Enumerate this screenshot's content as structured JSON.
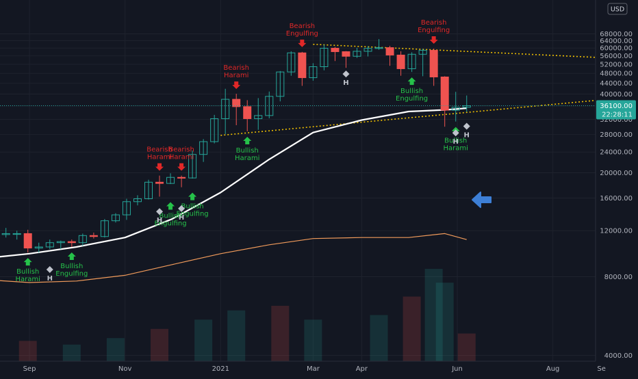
{
  "chart_data": {
    "type": "candlestick",
    "currency": "USD",
    "y_axis": {
      "scale": "log",
      "ticks": [
        "68000.00",
        "64000.00",
        "60000.00",
        "56000.00",
        "52000.00",
        "48000.00",
        "44000.00",
        "40000.00",
        "36000.00",
        "32000.00",
        "28000.00",
        "24000.00",
        "20000.00",
        "16000.00",
        "12000.00",
        "8000.00",
        "4000.00"
      ],
      "tick_values": [
        68000,
        64000,
        60000,
        56000,
        52000,
        48000,
        44000,
        40000,
        36000,
        32000,
        28000,
        24000,
        20000,
        16000,
        12000,
        8000,
        4000
      ]
    },
    "x_axis": {
      "ticks": [
        "Sep",
        "Nov",
        "2021",
        "Mar",
        "Apr",
        "Jun",
        "Aug",
        "Se"
      ],
      "tick_dates": [
        "2020-09-01",
        "2020-11-01",
        "2021-01-01",
        "2021-03-01",
        "2021-04-01",
        "2021-06-01",
        "2021-08-01",
        "2021-09-01"
      ]
    },
    "current_price": {
      "label": "36100.00",
      "value": 36100,
      "countdown": "22:28:11"
    },
    "candles": [
      {
        "date": "2020-08-03",
        "o": 11100,
        "h": 12100,
        "l": 10600,
        "c": 11800
      },
      {
        "date": "2020-08-10",
        "o": 11800,
        "h": 12400,
        "l": 11200,
        "c": 11600
      },
      {
        "date": "2020-08-17",
        "o": 11600,
        "h": 12300,
        "l": 11300,
        "c": 11700
      },
      {
        "date": "2020-08-24",
        "o": 11700,
        "h": 12000,
        "l": 11100,
        "c": 11700
      },
      {
        "date": "2020-08-31",
        "o": 11700,
        "h": 12100,
        "l": 9900,
        "c": 10300
      },
      {
        "date": "2020-09-07",
        "o": 10300,
        "h": 10800,
        "l": 9900,
        "c": 10400
      },
      {
        "date": "2020-09-14",
        "o": 10400,
        "h": 11100,
        "l": 10200,
        "c": 10800
      },
      {
        "date": "2020-09-21",
        "o": 10800,
        "h": 11000,
        "l": 10200,
        "c": 10900
      },
      {
        "date": "2020-09-28",
        "o": 10900,
        "h": 11100,
        "l": 10400,
        "c": 10800
      },
      {
        "date": "2020-10-05",
        "o": 10800,
        "h": 11700,
        "l": 10500,
        "c": 11500
      },
      {
        "date": "2020-10-12",
        "o": 11500,
        "h": 11800,
        "l": 11200,
        "c": 11400
      },
      {
        "date": "2020-10-19",
        "o": 11400,
        "h": 13300,
        "l": 11300,
        "c": 13100
      },
      {
        "date": "2020-10-26",
        "o": 13100,
        "h": 14000,
        "l": 12900,
        "c": 13800
      },
      {
        "date": "2020-11-02",
        "o": 13800,
        "h": 15900,
        "l": 13200,
        "c": 15500
      },
      {
        "date": "2020-11-09",
        "o": 15500,
        "h": 16400,
        "l": 15000,
        "c": 15900
      },
      {
        "date": "2020-11-16",
        "o": 15900,
        "h": 18800,
        "l": 15800,
        "c": 18400
      },
      {
        "date": "2020-11-23",
        "o": 18400,
        "h": 19500,
        "l": 16200,
        "c": 18200
      },
      {
        "date": "2020-11-30",
        "o": 18200,
        "h": 19900,
        "l": 18100,
        "c": 19200
      },
      {
        "date": "2020-12-07",
        "o": 19200,
        "h": 19500,
        "l": 17600,
        "c": 19100
      },
      {
        "date": "2020-12-14",
        "o": 19100,
        "h": 24300,
        "l": 19000,
        "c": 23500
      },
      {
        "date": "2020-12-21",
        "o": 23500,
        "h": 26900,
        "l": 22000,
        "c": 26300
      },
      {
        "date": "2020-12-28",
        "o": 26300,
        "h": 33300,
        "l": 25900,
        "c": 32200
      },
      {
        "date": "2021-01-04",
        "o": 32200,
        "h": 41900,
        "l": 28100,
        "c": 38200
      },
      {
        "date": "2021-01-11",
        "o": 38200,
        "h": 40100,
        "l": 30400,
        "c": 35800
      },
      {
        "date": "2021-01-18",
        "o": 35800,
        "h": 37900,
        "l": 28800,
        "c": 32200
      },
      {
        "date": "2021-01-25",
        "o": 32200,
        "h": 38600,
        "l": 29200,
        "c": 33100
      },
      {
        "date": "2021-02-01",
        "o": 33100,
        "h": 40900,
        "l": 32300,
        "c": 39200
      },
      {
        "date": "2021-02-08",
        "o": 39200,
        "h": 49000,
        "l": 37500,
        "c": 48600
      },
      {
        "date": "2021-02-15",
        "o": 48600,
        "h": 58300,
        "l": 47000,
        "c": 57500
      },
      {
        "date": "2021-02-22",
        "o": 57500,
        "h": 58000,
        "l": 43000,
        "c": 46200
      },
      {
        "date": "2021-03-01",
        "o": 46200,
        "h": 52500,
        "l": 45000,
        "c": 50900
      },
      {
        "date": "2021-03-08",
        "o": 50900,
        "h": 61800,
        "l": 49300,
        "c": 59900
      },
      {
        "date": "2021-03-15",
        "o": 59900,
        "h": 60600,
        "l": 53500,
        "c": 58100
      },
      {
        "date": "2021-03-22",
        "o": 58100,
        "h": 58400,
        "l": 50400,
        "c": 55800
      },
      {
        "date": "2021-03-29",
        "o": 55800,
        "h": 60100,
        "l": 55000,
        "c": 58300
      },
      {
        "date": "2021-04-05",
        "o": 58300,
        "h": 61000,
        "l": 55700,
        "c": 59800
      },
      {
        "date": "2021-04-12",
        "o": 59800,
        "h": 64900,
        "l": 59100,
        "c": 60200
      },
      {
        "date": "2021-04-19",
        "o": 60200,
        "h": 61200,
        "l": 51300,
        "c": 56400
      },
      {
        "date": "2021-04-26",
        "o": 56400,
        "h": 58300,
        "l": 47000,
        "c": 50000
      },
      {
        "date": "2021-05-03",
        "o": 50000,
        "h": 57800,
        "l": 48600,
        "c": 56800
      },
      {
        "date": "2021-05-10",
        "o": 56800,
        "h": 59600,
        "l": 46800,
        "c": 58800
      },
      {
        "date": "2021-05-17",
        "o": 58800,
        "h": 59700,
        "l": 43000,
        "c": 46500
      },
      {
        "date": "2021-05-24",
        "o": 46500,
        "h": 46800,
        "l": 30000,
        "c": 34700
      },
      {
        "date": "2021-05-31",
        "o": 34700,
        "h": 40800,
        "l": 31400,
        "c": 35600
      },
      {
        "date": "2021-06-07",
        "o": 35600,
        "h": 39500,
        "l": 34200,
        "c": 36100
      }
    ],
    "ma_white": {
      "dates": [
        "2020-08-03",
        "2020-09-01",
        "2020-10-01",
        "2020-11-01",
        "2020-12-01",
        "2021-01-01",
        "2021-02-01",
        "2021-03-01",
        "2021-04-01",
        "2021-05-01",
        "2021-05-24",
        "2021-06-07"
      ],
      "values": [
        9400,
        9800,
        10400,
        11300,
        13300,
        16800,
        22500,
        28500,
        31800,
        34300,
        34800,
        35300
      ]
    },
    "ma_orange": {
      "dates": [
        "2020-08-03",
        "2020-09-01",
        "2020-10-01",
        "2020-11-01",
        "2020-12-01",
        "2021-01-01",
        "2021-02-01",
        "2021-03-01",
        "2021-04-01",
        "2021-05-01",
        "2021-05-24",
        "2021-06-07"
      ],
      "values": [
        7800,
        7600,
        7700,
        8100,
        8900,
        9800,
        10600,
        11200,
        11300,
        11300,
        11700,
        11100
      ]
    },
    "trendlines": [
      {
        "name": "resistance",
        "color": "#f0c000",
        "from": {
          "date": "2021-03-01",
          "value": 62000
        },
        "to": {
          "date": "2021-09-05",
          "value": 55000
        }
      },
      {
        "name": "support",
        "color": "#f0c000",
        "from": {
          "date": "2021-01-01",
          "value": 27800
        },
        "to": {
          "date": "2021-09-05",
          "value": 38200
        }
      }
    ],
    "volume": [
      {
        "date": "2020-08-03",
        "v": 0.28
      },
      {
        "date": "2020-08-31",
        "v": 0.22
      },
      {
        "date": "2020-09-28",
        "v": 0.18
      },
      {
        "date": "2020-10-26",
        "v": 0.25
      },
      {
        "date": "2020-11-23",
        "v": 0.35
      },
      {
        "date": "2020-12-21",
        "v": 0.45
      },
      {
        "date": "2021-01-11",
        "v": 0.55
      },
      {
        "date": "2021-02-08",
        "v": 0.6
      },
      {
        "date": "2021-03-01",
        "v": 0.45
      },
      {
        "date": "2021-04-12",
        "v": 0.5
      },
      {
        "date": "2021-05-03",
        "v": 0.7
      },
      {
        "date": "2021-05-17",
        "v": 1.0
      },
      {
        "date": "2021-05-24",
        "v": 0.85
      },
      {
        "date": "2021-06-07",
        "v": 0.3
      }
    ],
    "annotations": [
      {
        "text": "Bearish\nEngulfing",
        "type": "bearish",
        "date": "2020-08-03",
        "value": 12100
      },
      {
        "text": "Bullish\nHarami",
        "type": "bullish",
        "date": "2020-08-03",
        "value": 9900
      },
      {
        "text": "Bullish\nHarami",
        "type": "bullish",
        "date": "2020-08-31",
        "value": 9900
      },
      {
        "text": "Bullish\nEngulfing",
        "type": "bullish",
        "date": "2020-09-28",
        "value": 10400
      },
      {
        "text": "H",
        "type": "marker",
        "date": "2020-08-03",
        "value": 9400
      },
      {
        "text": "H",
        "type": "marker",
        "date": "2020-09-14",
        "value": 9000
      },
      {
        "text": "Bearish\nHarami",
        "type": "bearish",
        "date": "2020-11-23",
        "value": 19500
      },
      {
        "text": "Bearish\nHarami",
        "type": "bearish",
        "date": "2020-12-07",
        "value": 19500
      },
      {
        "text": "Bullish\nEngulfing",
        "type": "bullish",
        "date": "2020-11-30",
        "value": 16200
      },
      {
        "text": "Bullish\nEngulfing",
        "type": "bullish",
        "date": "2020-12-14",
        "value": 17600
      },
      {
        "text": "H",
        "type": "marker",
        "date": "2020-11-23",
        "value": 15000
      },
      {
        "text": "H",
        "type": "marker",
        "date": "2020-12-07",
        "value": 15400
      },
      {
        "text": "Bearish\nHarami",
        "type": "bearish",
        "date": "2021-01-11",
        "value": 40100
      },
      {
        "text": "Bullish\nHarami",
        "type": "bullish",
        "date": "2021-01-18",
        "value": 28800
      },
      {
        "text": "Bearish\nEngulfing",
        "type": "bearish",
        "date": "2021-02-22",
        "value": 58000
      },
      {
        "text": "H",
        "type": "marker",
        "date": "2021-03-22",
        "value": 50400
      },
      {
        "text": "Bearish\nEngulfing",
        "type": "bearish",
        "date": "2021-05-17",
        "value": 59700
      },
      {
        "text": "Bullish\nEngulfing",
        "type": "bullish",
        "date": "2021-05-03",
        "value": 48600
      },
      {
        "text": "Bullish\nHarami",
        "type": "bullish",
        "date": "2021-05-31",
        "value": 31400
      },
      {
        "text": "H",
        "type": "marker",
        "date": "2021-05-31",
        "value": 30000
      },
      {
        "text": "H",
        "type": "marker",
        "date": "2021-06-07",
        "value": 31800
      }
    ],
    "legend": "none",
    "grid": true
  },
  "colors": {
    "background": "#131722",
    "grid": "#1e222d",
    "up": "#26a69a",
    "down": "#ef5350",
    "bullish_text": "#26c24a",
    "bearish_text": "#e02828",
    "ma_white": "#ffffff",
    "ma_orange": "#f19b5b",
    "price_badge": "#26a69a",
    "arrow": "#3d7fd6",
    "marker": "#bfc3cc"
  },
  "icons": {
    "arrow": "left-arrow-icon"
  }
}
